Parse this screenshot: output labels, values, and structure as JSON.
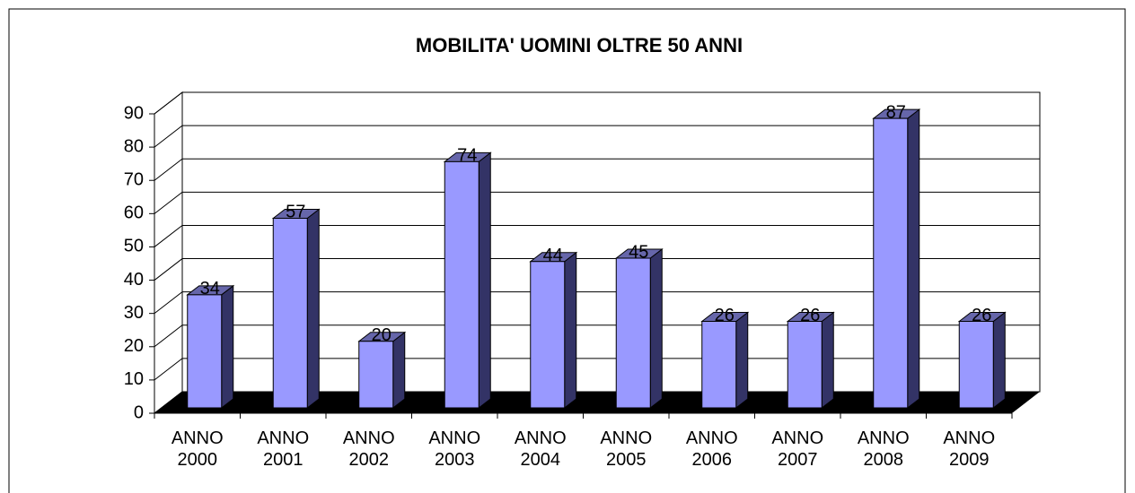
{
  "chart_data": {
    "type": "bar3d",
    "title": "MOBILITA' UOMINI OLTRE 50 ANNI",
    "categories": [
      "ANNO 2000",
      "ANNO 2001",
      "ANNO 2002",
      "ANNO 2003",
      "ANNO 2004",
      "ANNO 2005",
      "ANNO 2006",
      "ANNO 2007",
      "ANNO 2008",
      "ANNO 2009"
    ],
    "values": [
      34,
      57,
      20,
      74,
      44,
      45,
      26,
      26,
      87,
      26
    ],
    "color": "#9999ff",
    "ylim": [
      0,
      90
    ],
    "yticks": [
      0,
      10,
      20,
      30,
      40,
      50,
      60,
      70,
      80,
      90
    ],
    "grid": true
  }
}
